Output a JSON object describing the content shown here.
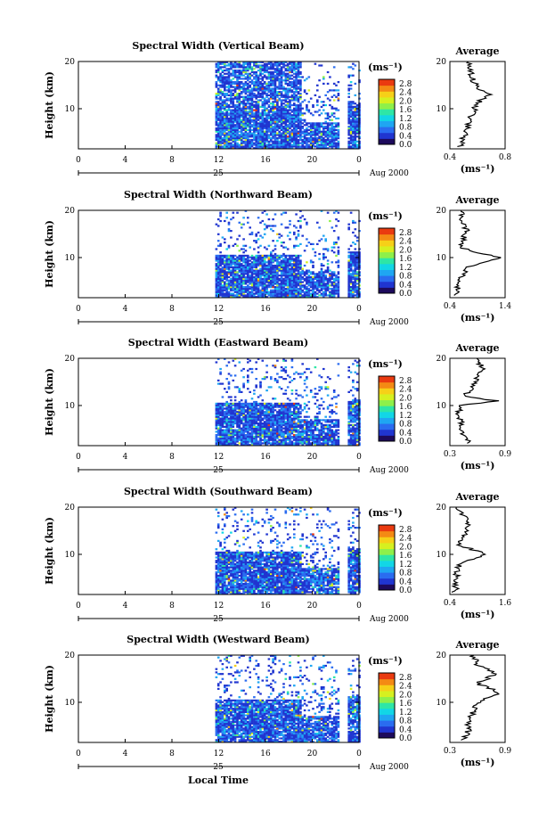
{
  "figure": {
    "x_label": "Local Time",
    "date_label": "Aug 2000",
    "day_label": "25"
  },
  "colorbar": {
    "unit": "(ms⁻¹)",
    "ticks": [
      "2.8",
      "2.4",
      "2.0",
      "1.6",
      "1.2",
      "0.8",
      "0.4",
      "0.0"
    ],
    "colors": [
      "#1d0a5c",
      "#2035d0",
      "#2a6cf0",
      "#1fa6f2",
      "#12d6e6",
      "#2ee6a6",
      "#8ef04a",
      "#d6f020",
      "#f6d018",
      "#f48a14",
      "#ea3a10"
    ]
  },
  "chart_data": [
    {
      "type": "heatmap",
      "title": "Spectral Width (Vertical Beam)",
      "ylabel": "Height (km)",
      "x_ticks": [
        "0",
        "4",
        "8",
        "12",
        "16",
        "20",
        "0"
      ],
      "y_ticks": [
        "20",
        "10"
      ],
      "xlim_hours": [
        0,
        24
      ],
      "ylim_km": [
        1.5,
        20
      ],
      "data_start_hour": 11.7,
      "gap_start_hour": 18.9,
      "gap_end_hour": 22.2,
      "colorbar_range": [
        0.0,
        3.0
      ],
      "average_profile": {
        "title": "Average",
        "xlabel": "(ms⁻¹)",
        "x_ticks": [
          "0.4",
          "0.8"
        ],
        "y_ticks": [
          "20",
          "10"
        ],
        "xlim": [
          0.4,
          0.8
        ],
        "height_km": [
          2,
          4,
          6,
          8,
          10,
          12,
          13,
          14,
          16,
          18,
          20
        ],
        "value": [
          0.47,
          0.5,
          0.53,
          0.55,
          0.58,
          0.62,
          0.7,
          0.6,
          0.57,
          0.55,
          0.53
        ]
      }
    },
    {
      "type": "heatmap",
      "title": "Spectral Width (Northward Beam)",
      "ylabel": "Height (km)",
      "x_ticks": [
        "0",
        "4",
        "8",
        "12",
        "16",
        "20",
        "0"
      ],
      "y_ticks": [
        "20",
        "10"
      ],
      "xlim_hours": [
        0,
        24
      ],
      "ylim_km": [
        1.5,
        20
      ],
      "data_start_hour": 11.7,
      "gap_start_hour": 18.9,
      "gap_end_hour": 22.2,
      "colorbar_range": [
        0.0,
        3.0
      ],
      "average_profile": {
        "title": "Average",
        "xlabel": "(ms⁻¹)",
        "x_ticks": [
          "0.4",
          "1.4"
        ],
        "y_ticks": [
          "20",
          "10"
        ],
        "xlim": [
          0.4,
          1.4
        ],
        "height_km": [
          2,
          4,
          6,
          8,
          10,
          12,
          14,
          16,
          18,
          20
        ],
        "value": [
          0.5,
          0.55,
          0.62,
          0.7,
          1.3,
          0.6,
          0.65,
          0.7,
          0.6,
          0.65
        ]
      }
    },
    {
      "type": "heatmap",
      "title": "Spectral Width (Eastward Beam)",
      "ylabel": "Height (km)",
      "x_ticks": [
        "0",
        "4",
        "8",
        "12",
        "16",
        "20",
        "0"
      ],
      "y_ticks": [
        "20",
        "10"
      ],
      "xlim_hours": [
        0,
        24
      ],
      "ylim_km": [
        1.5,
        20
      ],
      "data_start_hour": 11.7,
      "gap_start_hour": 18.9,
      "gap_end_hour": 22.2,
      "colorbar_range": [
        0.0,
        3.0
      ],
      "average_profile": {
        "title": "Average",
        "xlabel": "(ms⁻¹)",
        "x_ticks": [
          "0.3",
          "0.9"
        ],
        "y_ticks": [
          "20",
          "10"
        ],
        "xlim": [
          0.3,
          0.9
        ],
        "height_km": [
          2,
          4,
          6,
          8,
          10,
          11,
          12,
          14,
          16,
          18,
          20
        ],
        "value": [
          0.5,
          0.45,
          0.42,
          0.4,
          0.41,
          0.8,
          0.45,
          0.55,
          0.6,
          0.65,
          0.6
        ]
      }
    },
    {
      "type": "heatmap",
      "title": "Spectral Width (Southward Beam)",
      "ylabel": "Height (km)",
      "x_ticks": [
        "0",
        "4",
        "8",
        "12",
        "16",
        "20",
        "0"
      ],
      "y_ticks": [
        "20",
        "10"
      ],
      "xlim_hours": [
        0,
        24
      ],
      "ylim_km": [
        1.5,
        20
      ],
      "data_start_hour": 11.7,
      "gap_start_hour": 18.9,
      "gap_end_hour": 22.2,
      "colorbar_range": [
        0.0,
        3.0
      ],
      "average_profile": {
        "title": "Average",
        "xlabel": "(ms⁻¹)",
        "x_ticks": [
          "0.4",
          "1.6"
        ],
        "y_ticks": [
          "20",
          "10"
        ],
        "xlim": [
          0.4,
          1.6
        ],
        "height_km": [
          2,
          4,
          6,
          8,
          10,
          12,
          14,
          16,
          18,
          20
        ],
        "value": [
          0.5,
          0.55,
          0.55,
          0.6,
          1.2,
          0.6,
          0.7,
          0.8,
          0.7,
          0.5
        ]
      }
    },
    {
      "type": "heatmap",
      "title": "Spectral Width (Westward Beam)",
      "ylabel": "Height (km)",
      "x_ticks": [
        "0",
        "4",
        "8",
        "12",
        "16",
        "20",
        "0"
      ],
      "y_ticks": [
        "20",
        "10"
      ],
      "xlim_hours": [
        0,
        24
      ],
      "ylim_km": [
        1.5,
        20
      ],
      "data_start_hour": 11.7,
      "gap_start_hour": 18.9,
      "gap_end_hour": 22.2,
      "colorbar_range": [
        0.0,
        3.0
      ],
      "average_profile": {
        "title": "Average",
        "xlabel": "(ms⁻¹)",
        "x_ticks": [
          "0.3",
          "0.9"
        ],
        "y_ticks": [
          "20",
          "10"
        ],
        "xlim": [
          0.3,
          0.9
        ],
        "height_km": [
          2,
          4,
          6,
          8,
          10,
          12,
          14,
          16,
          18,
          20
        ],
        "value": [
          0.45,
          0.5,
          0.5,
          0.55,
          0.6,
          0.85,
          0.6,
          0.8,
          0.6,
          0.55
        ]
      }
    }
  ]
}
